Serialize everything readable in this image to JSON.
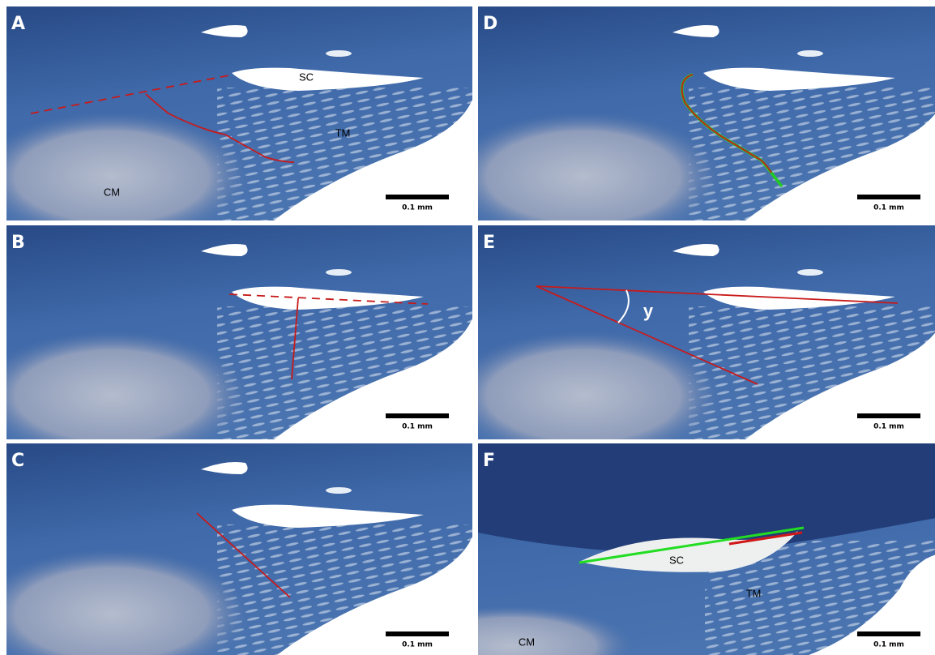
{
  "panels": [
    {
      "letter": "A",
      "labels": [
        "SC",
        "TM",
        "CM"
      ],
      "scale_label": "0.1 mm"
    },
    {
      "letter": "B",
      "labels": [],
      "scale_label": "0.1 mm"
    },
    {
      "letter": "C",
      "labels": [],
      "scale_label": "0.1 mm"
    },
    {
      "letter": "D",
      "labels": [],
      "scale_label": "0.1 mm"
    },
    {
      "letter": "E",
      "labels": [
        "y"
      ],
      "scale_label": "0.1 mm"
    },
    {
      "letter": "F",
      "labels": [
        "SC",
        "TM",
        "CM"
      ],
      "scale_label": "0.1 mm"
    }
  ]
}
